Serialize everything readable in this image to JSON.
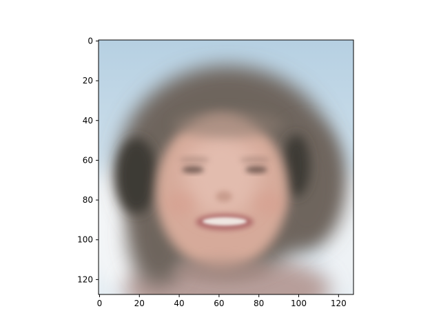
{
  "figure": {
    "kind": "image-plot",
    "subject": "blurry-face-reconstruction",
    "image_shape": [
      128,
      128
    ],
    "x_axis": {
      "range": [
        0,
        128
      ],
      "ticks": [
        {
          "value": 0,
          "label": "0"
        },
        {
          "value": 20,
          "label": "20"
        },
        {
          "value": 40,
          "label": "40"
        },
        {
          "value": 60,
          "label": "60"
        },
        {
          "value": 80,
          "label": "80"
        },
        {
          "value": 100,
          "label": "100"
        },
        {
          "value": 120,
          "label": "120"
        }
      ]
    },
    "y_axis": {
      "range": [
        0,
        128
      ],
      "inverted": true,
      "ticks": [
        {
          "value": 0,
          "label": "0"
        },
        {
          "value": 20,
          "label": "20"
        },
        {
          "value": 40,
          "label": "40"
        },
        {
          "value": 60,
          "label": "60"
        },
        {
          "value": 80,
          "label": "80"
        },
        {
          "value": 100,
          "label": "100"
        },
        {
          "value": 120,
          "label": "120"
        }
      ]
    },
    "colors": {
      "sky_top": "#b6d0e2",
      "sky_bottom": "#e4edf3",
      "hair": "#6e655d",
      "hair_dark": "#3c3a36",
      "skin": "#d6aa9a",
      "skin_light": "#e2bcae",
      "lips": "#b06c6c",
      "teeth": "#efe6e1",
      "shirt": "#b79e9a",
      "axis": "#000000"
    }
  }
}
